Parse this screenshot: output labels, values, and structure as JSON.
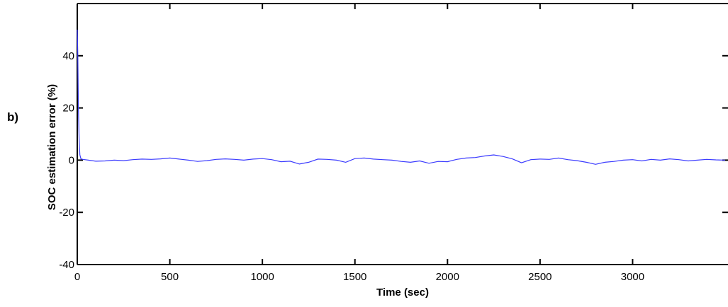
{
  "panel_label": "b)",
  "chart_data": {
    "type": "line",
    "title": "",
    "xlabel": "Time (sec)",
    "ylabel": "SOC estimation error (%)",
    "xlim": [
      0,
      3500
    ],
    "ylim": [
      -40,
      60
    ],
    "xticks": [
      0,
      500,
      1000,
      1500,
      2000,
      2500,
      3000
    ],
    "yticks": [
      -40,
      -20,
      0,
      20,
      40
    ],
    "grid": false,
    "series": [
      {
        "color": "#3b3bff",
        "x": [
          0,
          3,
          6,
          10,
          14,
          20,
          30,
          60,
          100,
          150,
          200,
          250,
          300,
          350,
          400,
          450,
          500,
          550,
          600,
          650,
          700,
          750,
          800,
          850,
          900,
          950,
          1000,
          1050,
          1100,
          1150,
          1200,
          1250,
          1300,
          1350,
          1400,
          1450,
          1500,
          1550,
          1600,
          1650,
          1700,
          1750,
          1800,
          1850,
          1900,
          1950,
          2000,
          2050,
          2100,
          2150,
          2200,
          2250,
          2300,
          2350,
          2400,
          2450,
          2500,
          2550,
          2600,
          2650,
          2700,
          2750,
          2800,
          2850,
          2900,
          2950,
          3000,
          3050,
          3100,
          3150,
          3200,
          3250,
          3300,
          3350,
          3400,
          3450,
          3500
        ],
        "y": [
          50,
          40,
          20,
          8,
          2,
          0.5,
          0.3,
          0,
          -0.4,
          -0.3,
          0,
          -0.2,
          0.2,
          0.4,
          0.3,
          0.5,
          0.8,
          0.4,
          0,
          -0.5,
          -0.2,
          0.3,
          0.5,
          0.3,
          0,
          0.4,
          0.6,
          0.2,
          -0.6,
          -0.4,
          -1.5,
          -0.8,
          0.4,
          0.3,
          0,
          -0.8,
          0.6,
          0.8,
          0.4,
          0.2,
          0,
          -0.5,
          -0.8,
          -0.3,
          -1.2,
          -0.5,
          -0.6,
          0.3,
          0.8,
          1.0,
          1.6,
          2.0,
          1.4,
          0.5,
          -1.0,
          0.2,
          0.4,
          0.3,
          0.8,
          0.2,
          -0.2,
          -0.8,
          -1.6,
          -0.8,
          -0.5,
          0,
          0.2,
          -0.3,
          0.3,
          0,
          0.5,
          0.2,
          -0.3,
          0,
          0.3,
          0.1,
          0
        ]
      }
    ]
  }
}
